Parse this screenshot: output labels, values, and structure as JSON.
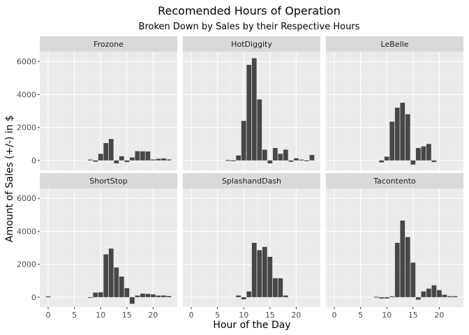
{
  "chart_data": {
    "type": "bar",
    "title": "Recomended Hours of Operation",
    "subtitle": "Broken Down by Sales by their Respective Hours",
    "xlabel": "Hour of the Day",
    "ylabel": "Amount of Sales (+/-) in $",
    "xlim": [
      -1.6,
      24.6
    ],
    "ylim": [
      -600,
      6600
    ],
    "x_ticks": [
      0,
      5,
      10,
      15,
      20
    ],
    "y_ticks": [
      0,
      2000,
      4000,
      6000
    ],
    "grid": true,
    "facets": [
      {
        "name": "Frozone",
        "x": [
          0,
          1,
          2,
          3,
          4,
          5,
          6,
          7,
          8,
          9,
          10,
          11,
          12,
          13,
          14,
          15,
          16,
          17,
          18,
          19,
          20,
          21,
          22,
          23
        ],
        "values": [
          0,
          0,
          0,
          0,
          0,
          0,
          0,
          0,
          50,
          -80,
          400,
          1050,
          1300,
          -180,
          250,
          -100,
          180,
          560,
          550,
          540,
          60,
          100,
          120,
          60
        ]
      },
      {
        "name": "HotDiggity",
        "x": [
          0,
          1,
          2,
          3,
          4,
          5,
          6,
          7,
          8,
          9,
          10,
          11,
          12,
          13,
          14,
          15,
          16,
          17,
          18,
          19,
          20,
          21,
          22,
          23
        ],
        "values": [
          0,
          0,
          0,
          0,
          0,
          0,
          0,
          20,
          -50,
          300,
          2400,
          5800,
          6200,
          3700,
          650,
          -180,
          750,
          400,
          650,
          -80,
          130,
          50,
          -50,
          330
        ]
      },
      {
        "name": "LeBelle",
        "x": [
          0,
          1,
          2,
          3,
          4,
          5,
          6,
          7,
          8,
          9,
          10,
          11,
          12,
          13,
          14,
          15,
          16,
          17,
          18,
          19,
          20,
          21,
          22,
          23
        ],
        "values": [
          0,
          0,
          0,
          0,
          0,
          0,
          0,
          0,
          0,
          -120,
          230,
          2350,
          3200,
          3500,
          2800,
          -250,
          750,
          850,
          1000,
          -100,
          0,
          0,
          0,
          0
        ]
      },
      {
        "name": "ShortStop",
        "x": [
          0,
          1,
          2,
          3,
          4,
          5,
          6,
          7,
          8,
          9,
          10,
          11,
          12,
          13,
          14,
          15,
          16,
          17,
          18,
          19,
          20,
          21,
          22,
          23
        ],
        "values": [
          50,
          0,
          0,
          0,
          0,
          0,
          0,
          0,
          -20,
          280,
          300,
          2600,
          2950,
          1800,
          1250,
          550,
          -400,
          100,
          220,
          200,
          170,
          100,
          100,
          70
        ]
      },
      {
        "name": "SplashandDash",
        "x": [
          0,
          1,
          2,
          3,
          4,
          5,
          6,
          7,
          8,
          9,
          10,
          11,
          12,
          13,
          14,
          15,
          16,
          17,
          18,
          19,
          20,
          21,
          22,
          23
        ],
        "values": [
          0,
          0,
          0,
          0,
          0,
          0,
          0,
          0,
          0,
          100,
          -130,
          350,
          3300,
          2850,
          3050,
          2450,
          1150,
          1150,
          100,
          0,
          0,
          0,
          0,
          0
        ]
      },
      {
        "name": "Tacontento",
        "x": [
          0,
          1,
          2,
          3,
          4,
          5,
          6,
          7,
          8,
          9,
          10,
          11,
          12,
          13,
          14,
          15,
          16,
          17,
          18,
          19,
          20,
          21,
          22,
          23
        ],
        "values": [
          0,
          0,
          0,
          0,
          0,
          0,
          0,
          0,
          20,
          -80,
          -80,
          50,
          3300,
          4650,
          3650,
          2100,
          -150,
          350,
          520,
          720,
          430,
          150,
          60,
          60
        ]
      }
    ]
  },
  "colors": {
    "bar": "#474747",
    "panel_bg": "#ebebeb",
    "strip_bg": "#d9d9d9",
    "grid_major": "#ffffff"
  }
}
